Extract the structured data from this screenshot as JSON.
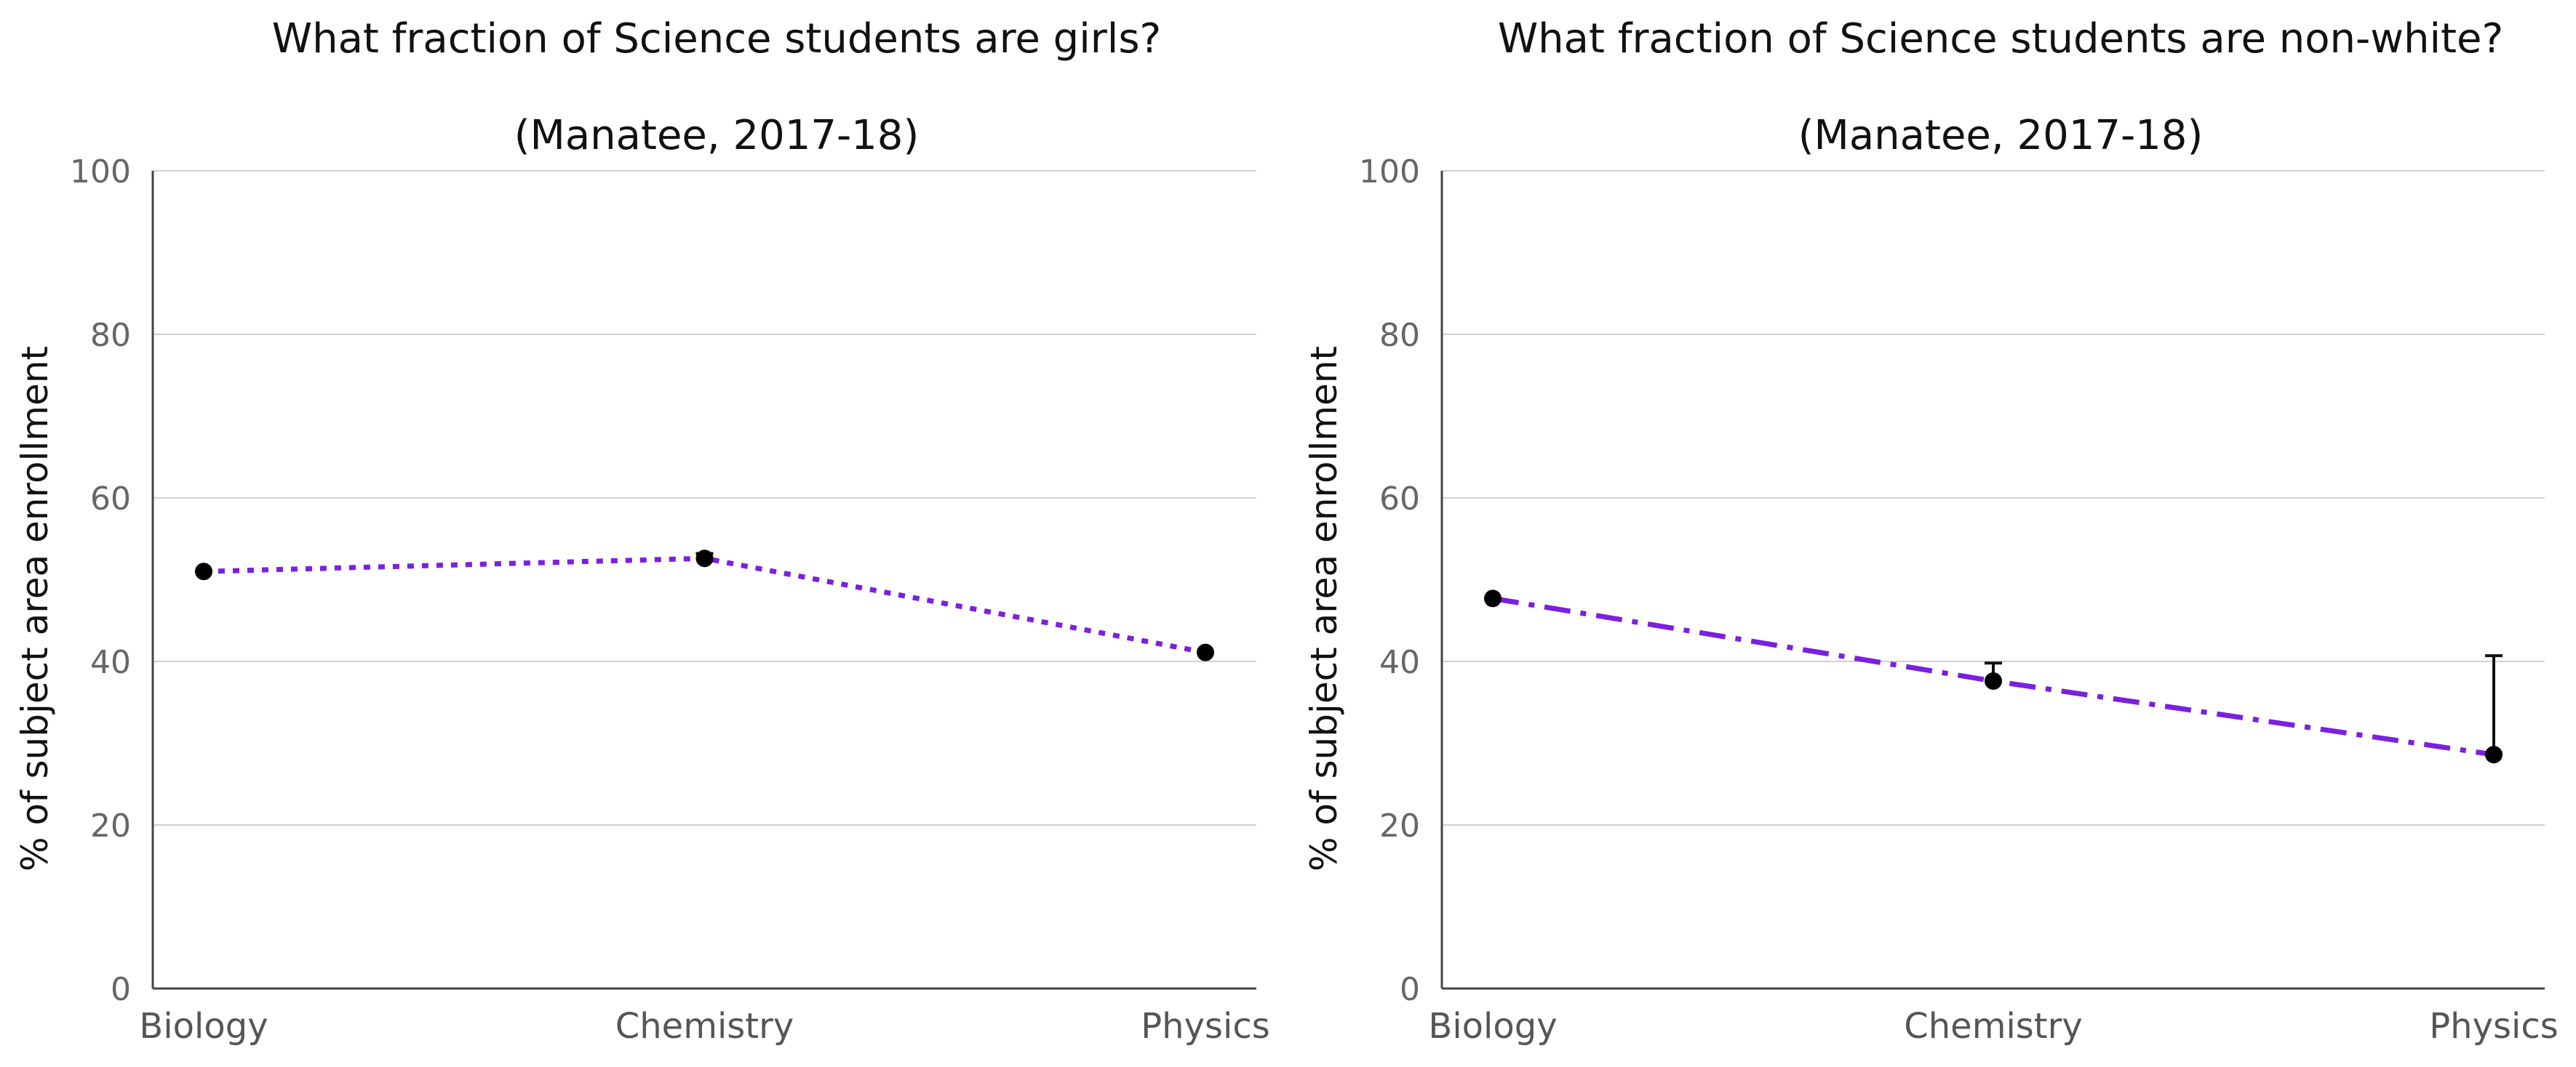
{
  "chart_data": [
    {
      "type": "line",
      "title": "What fraction of Science students are girls?",
      "subtitle": "(Manatee, 2017-18)",
      "xlabel": "",
      "ylabel": "% of subject area enrollment",
      "categories": [
        "Biology",
        "Chemistry",
        "Physics"
      ],
      "series": [
        {
          "values": [
            51.0,
            52.6,
            41.1
          ],
          "error_upper": [
            null,
            53.2,
            null
          ],
          "color": "#7b1fe0",
          "line_style": "dotted",
          "marker_color": "#000000"
        }
      ],
      "ylim": [
        0,
        100
      ],
      "yticks": [
        0,
        20,
        40,
        60,
        80,
        100
      ],
      "grid": "horizontal"
    },
    {
      "type": "line",
      "title": "What fraction of Science students are non-white?",
      "subtitle": "(Manatee, 2017-18)",
      "xlabel": "",
      "ylabel": "% of subject area enrollment",
      "categories": [
        "Biology",
        "Chemistry",
        "Physics"
      ],
      "series": [
        {
          "values": [
            47.7,
            37.6,
            28.6
          ],
          "error_upper": [
            null,
            39.8,
            40.7
          ],
          "color": "#7b1fe0",
          "line_style": "dashdot",
          "marker_color": "#000000"
        }
      ],
      "ylim": [
        0,
        100
      ],
      "yticks": [
        0,
        20,
        40,
        60,
        80,
        100
      ],
      "grid": "horizontal"
    }
  ]
}
